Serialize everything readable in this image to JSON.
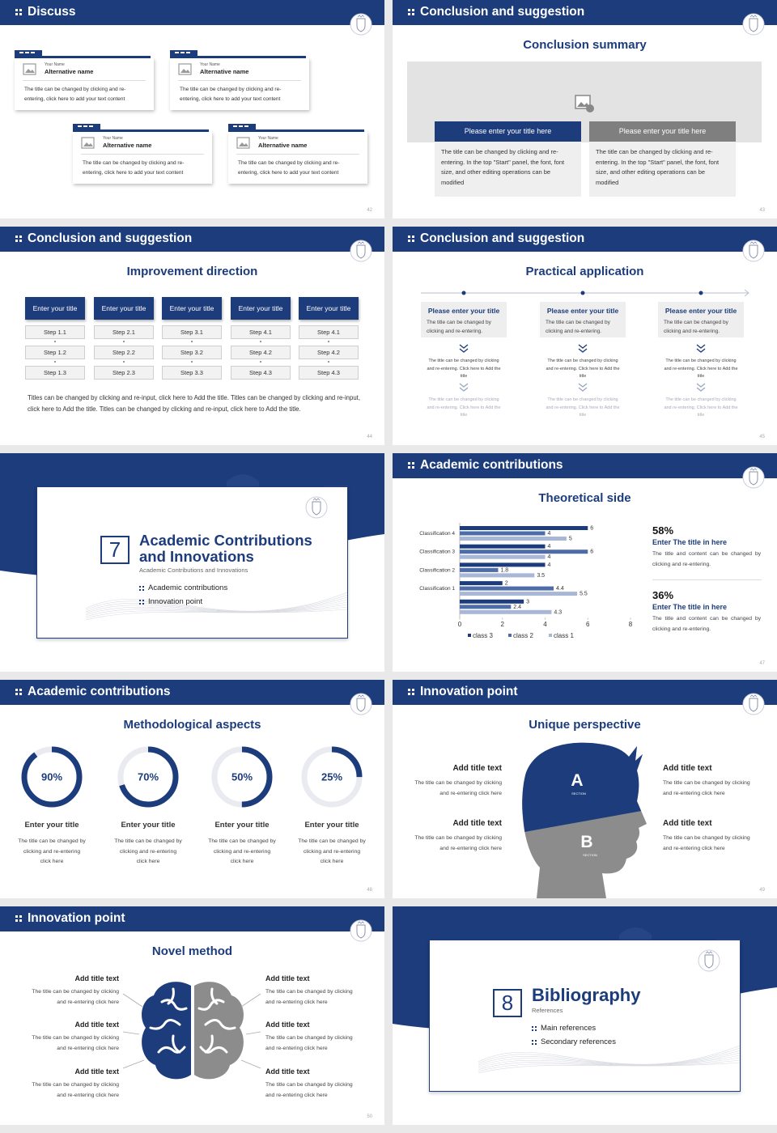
{
  "slides": [
    {
      "header": "Discuss",
      "page": 42,
      "cards": [
        {
          "small": "Your Name",
          "name": "Alternative name",
          "body": "The title can be changed by clicking and re-entering, click here to add your text content"
        },
        {
          "small": "Your Name",
          "name": "Alternative name",
          "body": "The title can be changed by clicking and re-entering, click here to add your text content"
        },
        {
          "small": "Your Name",
          "name": "Alternative name",
          "body": "The title can be changed by clicking and re-entering, click here to add your text content"
        },
        {
          "small": "Your Name",
          "name": "Alternative name",
          "body": "The title can be changed by clicking and re-entering, click here to add your text content"
        }
      ]
    },
    {
      "header": "Conclusion and suggestion",
      "title": "Conclusion summary",
      "page": 43,
      "boxes": [
        {
          "title": "Please enter your title here",
          "body": "The title can be changed by clicking and re-entering. In the top \"Start\" panel, the font, font size, and other editing operations can be modified"
        },
        {
          "title": "Please enter your title here",
          "body": "The title can be changed by clicking and re-entering. In the top \"Start\" panel, the font, font size, and other editing operations can be modified"
        }
      ]
    },
    {
      "header": "Conclusion and suggestion",
      "title": "Improvement direction",
      "page": 44,
      "columns": [
        {
          "title": "Enter your title",
          "steps": [
            "Step 1.1",
            "Step 1.2",
            "Step 1.3"
          ]
        },
        {
          "title": "Enter your title",
          "steps": [
            "Step 2.1",
            "Step 2.2",
            "Step 2.3"
          ]
        },
        {
          "title": "Enter your title",
          "steps": [
            "Step 3.1",
            "Step 3.2",
            "Step 3.3"
          ]
        },
        {
          "title": "Enter your title",
          "steps": [
            "Step 4.1",
            "Step 4.2",
            "Step 4.3"
          ]
        },
        {
          "title": "Enter your title",
          "steps": [
            "Step 4.1",
            "Step 4.2",
            "Step 4.3"
          ]
        }
      ],
      "note": "Titles can be changed by clicking and re-input, click here to Add the title. Titles can be changed by clicking and re-input, click here to Add the title. Titles can be changed by clicking and re-input, click here to Add the title."
    },
    {
      "header": "Conclusion and suggestion",
      "title": "Practical application",
      "page": 45,
      "items": [
        {
          "title": "Please enter your title",
          "body": "The title can be changed by clicking and re-entering.",
          "text1": "The title can be changed by clicking and re-entering. Click here to Add the title",
          "text2": "The title can be changed by clicking and re-entering. Click here to Add the title"
        },
        {
          "title": "Please enter your title",
          "body": "The title can be changed by clicking and re-entering.",
          "text1": "The title can be changed by clicking and re-entering. Click here to Add the title",
          "text2": "The title can be changed by clicking and re-entering. Click here to Add the title"
        },
        {
          "title": "Please enter your title",
          "body": "The title can be changed by clicking and re-entering.",
          "text1": "The title can be changed by clicking and re-entering. Click here to Add the title",
          "text2": "The title can be changed by clicking and re-entering. Click here to Add the title"
        }
      ]
    },
    {
      "number": 7,
      "title": "Academic Contributions and Innovations",
      "subtitle": "Academic Contributions and Innovations",
      "items": [
        "Academic contributions",
        "Innovation point"
      ],
      "page": 46
    },
    {
      "header": "Academic contributions",
      "title": "Theoretical side",
      "page": 47,
      "stats": [
        {
          "value": "58%",
          "title": "Enter The title in here",
          "body": "The title and content can be changed by clicking and re-entering."
        },
        {
          "value": "36%",
          "title": "Enter The title in here",
          "body": "The title and content can be changed by clicking and re-entering."
        }
      ]
    },
    {
      "header": "Academic contributions",
      "title": "Methodological aspects",
      "page": 48,
      "rings": [
        {
          "percent": {
            "value": 90,
            "label": "90%"
          },
          "title": "Enter your title",
          "body": "The title can be changed by clicking and re-entering click here"
        },
        {
          "percent": {
            "value": 70,
            "label": "70%"
          },
          "title": "Enter your title",
          "body": "The title can be changed by clicking and re-entering click here"
        },
        {
          "percent": {
            "value": 50,
            "label": "50%"
          },
          "title": "Enter your title",
          "body": "The title can be changed by clicking and re-entering click here"
        },
        {
          "percent": {
            "value": 25,
            "label": "25%"
          },
          "title": "Enter your title",
          "body": "The title can be changed by clicking and re-entering click here"
        }
      ]
    },
    {
      "header": "Innovation point",
      "title": "Unique perspective",
      "page": 49,
      "head": {
        "a": "A",
        "a_sub": "SECTION",
        "b": "B",
        "b_sub": "SECTION"
      },
      "items": [
        {
          "title": "Add title text",
          "body": "The title can be changed by clicking and re-entering click here"
        },
        {
          "title": "Add title text",
          "body": "The title can be changed by clicking and re-entering click here"
        },
        {
          "title": "Add title text",
          "body": "The title can be changed by clicking and re-entering click here"
        },
        {
          "title": "Add title text",
          "body": "The title can be changed by clicking and re-entering click here"
        }
      ]
    },
    {
      "header": "Innovation point",
      "title": "Novel method",
      "page": 50,
      "items": [
        {
          "title": "Add title text",
          "body": "The title can be changed by clicking and re-entering click here"
        },
        {
          "title": "Add title text",
          "body": "The title can be changed by clicking and re-entering click here"
        },
        {
          "title": "Add title text",
          "body": "The title can be changed by clicking and re-entering click here"
        },
        {
          "title": "Add title text",
          "body": "The title can be changed by clicking and re-entering click here"
        },
        {
          "title": "Add title text",
          "body": "The title can be changed by clicking and re-entering click here"
        },
        {
          "title": "Add title text",
          "body": "The title can be changed by clicking and re-entering click here"
        }
      ]
    },
    {
      "number": 8,
      "title": "Bibliography",
      "subtitle": "References",
      "items": [
        "Main references",
        "Secondary references"
      ],
      "page": 51
    }
  ],
  "chart_data": {
    "type": "bar",
    "horizontal": true,
    "categories": [
      "Classification 4",
      "Classification 3",
      "Classification 2",
      "Classification 1",
      null
    ],
    "series": [
      {
        "name": "class 3",
        "color": "#1c3c7c",
        "values": [
          6,
          4,
          4,
          2,
          3
        ]
      },
      {
        "name": "class 2",
        "color": "#4d6ca8",
        "values": [
          4,
          6,
          1.8,
          4.4,
          2.4
        ]
      },
      {
        "name": "class 1",
        "color": "#a8b7d6",
        "values": [
          5,
          4,
          3.5,
          5.5,
          4.3
        ]
      }
    ],
    "xlim": [
      0,
      8
    ],
    "xticks": [
      0,
      2,
      4,
      6,
      8
    ],
    "grid": false,
    "legend": "bottom"
  }
}
